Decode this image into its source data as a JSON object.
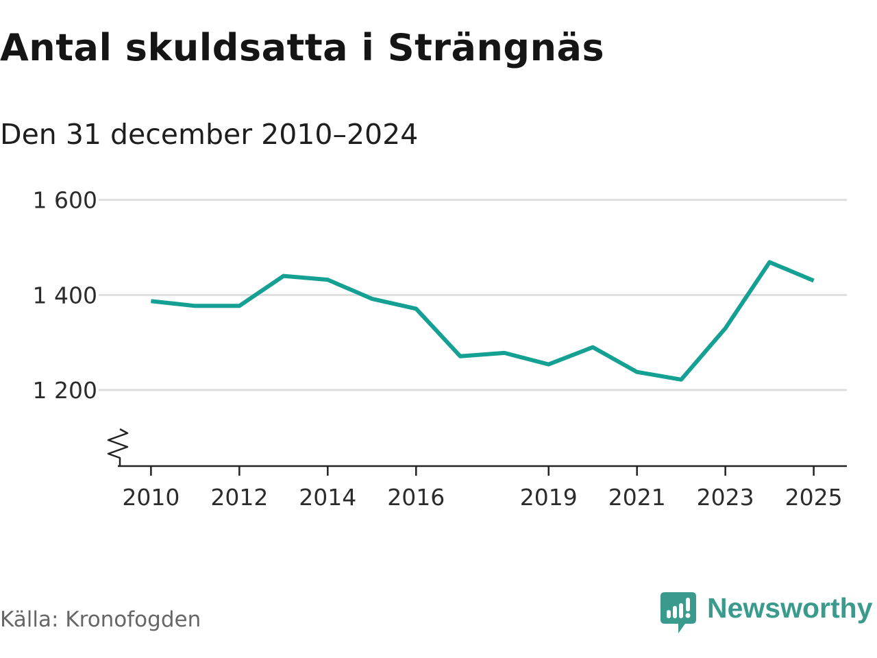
{
  "title": "Antal skuldsatta i Strängnäs",
  "subtitle": "Den 31 december 2010–2024",
  "source": "Källa: Kronofogden",
  "brand": {
    "name": "Newsworthy",
    "icon": "newsworthy-bar-chart-logo-icon",
    "color": "#3a9b8c"
  },
  "colors": {
    "line": "#14a093",
    "grid": "#dedede",
    "axis": "#222222"
  },
  "chart_data": {
    "type": "line",
    "title": "Antal skuldsatta i Strängnäs",
    "subtitle": "Den 31 december 2010–2024",
    "xlabel": "",
    "ylabel": "",
    "xlim": [
      2009.25,
      2025.75
    ],
    "ylim": [
      1040,
      1660
    ],
    "axis_break": true,
    "grid": true,
    "y_ticks": [
      {
        "value": 1200,
        "label": "1 200"
      },
      {
        "value": 1400,
        "label": "1 400"
      },
      {
        "value": 1600,
        "label": "1 600"
      }
    ],
    "x_ticks": [
      {
        "value": 2010,
        "label": "2010"
      },
      {
        "value": 2012,
        "label": "2012"
      },
      {
        "value": 2014,
        "label": "2014"
      },
      {
        "value": 2016,
        "label": "2016"
      },
      {
        "value": 2019,
        "label": "2019"
      },
      {
        "value": 2021,
        "label": "2021"
      },
      {
        "value": 2023,
        "label": "2023"
      },
      {
        "value": 2025,
        "label": "2025"
      }
    ],
    "series": [
      {
        "name": "Antal skuldsatta",
        "x": [
          2010,
          2011,
          2012,
          2013,
          2014,
          2015,
          2016,
          2017,
          2018,
          2019,
          2020,
          2021,
          2022,
          2023,
          2024,
          2025
        ],
        "values": [
          1387,
          1377,
          1377,
          1440,
          1432,
          1392,
          1371,
          1271,
          1278,
          1254,
          1290,
          1238,
          1222,
          1330,
          1469,
          1430
        ]
      }
    ]
  }
}
